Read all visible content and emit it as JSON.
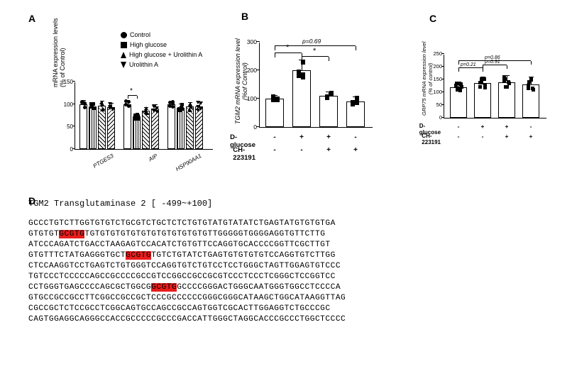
{
  "panelA": {
    "label": "A",
    "legend": [
      "Control",
      "High glucose",
      "High glucose + Urolithin A",
      "Urolithin A"
    ],
    "ylabel": "mRNA expression levels\n(% of Control)",
    "ylim": [
      0,
      150
    ],
    "ytick_step": 50,
    "categories": [
      "PTGES3",
      "AIP",
      "HSP90AA1"
    ],
    "bar_fills": [
      "white",
      "vstripe",
      "diag1",
      "diag2"
    ],
    "bar_colors": "#000000",
    "groups": [
      {
        "values": [
          100,
          95,
          96,
          93
        ],
        "err": [
          8,
          6,
          10,
          8
        ]
      },
      {
        "values": [
          100,
          72,
          85,
          90
        ],
        "err": [
          7,
          5,
          6,
          8
        ]
      },
      {
        "values": [
          100,
          92,
          94,
          95
        ],
        "err": [
          6,
          8,
          9,
          10
        ]
      }
    ],
    "points_per_bar": 5,
    "significance": {
      "group": 1,
      "between": [
        0,
        1
      ],
      "label": "*"
    },
    "label_fontsize": 9,
    "background_color": "#ffffff"
  },
  "panelB": {
    "label": "B",
    "ylabel": "TGM2 mRNA expression level\n(%of Control)",
    "ylim": [
      0,
      300
    ],
    "ytick_step": 100,
    "conditions": [
      {
        "dglucose": "-",
        "ch": "-"
      },
      {
        "dglucose": "+",
        "ch": "-"
      },
      {
        "dglucose": "+",
        "ch": "+"
      },
      {
        "dglucose": "-",
        "ch": "+"
      }
    ],
    "cond_labels": [
      "D-glucose",
      "CH-223191"
    ],
    "values": [
      100,
      200,
      110,
      90
    ],
    "err": [
      10,
      35,
      12,
      15
    ],
    "points_per_bar": 6,
    "brackets": [
      {
        "from": 0,
        "to": 1,
        "label": "*",
        "y": 260
      },
      {
        "from": 1,
        "to": 2,
        "label": "*",
        "y": 248
      },
      {
        "from": 0,
        "to": 3,
        "label": "p=0.69",
        "y": 285
      }
    ],
    "bar_color": "#ffffff",
    "border_color": "#000000"
  },
  "panelC": {
    "label": "C",
    "ylabel": "GRP75 mRNA expression level\n(% of control)",
    "ylim": [
      0,
      250
    ],
    "ytick_step": 50,
    "conditions": [
      {
        "dglucose": "-",
        "ch": "-"
      },
      {
        "dglucose": "+",
        "ch": "-"
      },
      {
        "dglucose": "+",
        "ch": "+"
      },
      {
        "dglucose": "-",
        "ch": "+"
      }
    ],
    "cond_labels": [
      "D-glucose",
      "CH-223191"
    ],
    "values": [
      120,
      135,
      140,
      130
    ],
    "err": [
      18,
      22,
      25,
      28
    ],
    "points_per_bar": 7,
    "brackets": [
      {
        "from": 0,
        "to": 1,
        "label": "p=0.21",
        "y": 195
      },
      {
        "from": 1,
        "to": 2,
        "label": "p=0.91",
        "y": 205
      },
      {
        "from": 0,
        "to": 3,
        "label": "p=0.86",
        "y": 222
      }
    ],
    "bar_color": "#ffffff"
  },
  "panelD": {
    "label": "D",
    "title": "TGM2 Transglutaminase 2 [ -499~+100]",
    "motif_color": "#e81d1d",
    "sequence_lines": [
      [
        {
          "t": "GCCCTGTCTTGGTGTGTCTGCGTCTGCTCTCTGTGTATGTATATCTGAGTATGTGTGTGA",
          "m": 0
        }
      ],
      [
        {
          "t": "GTGTGT",
          "m": 0
        },
        {
          "t": "GCGTG",
          "m": 1
        },
        {
          "t": "TGTGTGTGTGTGTGTGTGTGTGTGTTGGGGGTGGGGAGGTGTTCTTG",
          "m": 0
        }
      ],
      [
        {
          "t": "ATCCCAGATCTGACCTAAGAGTCCACATCTGTGTTCCAGGTGCACCCCGGTTCGCTTGT",
          "m": 0
        }
      ],
      [
        {
          "t": "GTGTTTCTATGAGGGTGCT",
          "m": 0
        },
        {
          "t": "GCGTG",
          "m": 1
        },
        {
          "t": "TGTCTGTATCTGAGTGTGTGTGTCCAGGTGTCTTGG",
          "m": 0
        }
      ],
      [
        {
          "t": "CTCCAAGGTCCTGAGTCTGTGGGTCCAGGTGTCTGTCCTCCTGGGCTAGTTGGAGTGTCCC",
          "m": 0
        }
      ],
      [
        {
          "t": "TGTCCCTCCCCCAGCCGCCCCGCCGTCCGGCCGCCGCGTCCCTCCCTCGGGCTCCGGTCC",
          "m": 0
        }
      ],
      [
        {
          "t": "CCTGGGTGAGCCCCAGCGCTGGCG",
          "m": 0
        },
        {
          "t": "GCGTG",
          "m": 1
        },
        {
          "t": "GCCCCGGGACTGGGCAATGGGTGGCCTCCCCA",
          "m": 0
        }
      ],
      [
        {
          "t": "GTGCCGCCGCCTTCGGCCGCCGCTCCCGCCCCCCGGGCGGGCATAAGCTGGCATAAGGTTAG",
          "m": 0
        }
      ],
      [
        {
          "t": "CGCCGCTCTCCGCCTCGGCAGTGCCAGCCGCCAGTGGTCGCACTTGGAGGTCTGCCCGC",
          "m": 0
        }
      ],
      [
        {
          "t": "CAGTGGAGGCAGGGCCACCGCCCCCGCCCGACCATTGGGCTAGGCACCCGCCCTGGCTCCCC",
          "m": 0
        }
      ]
    ],
    "font": "Courier New",
    "fontsize": 11.2
  }
}
